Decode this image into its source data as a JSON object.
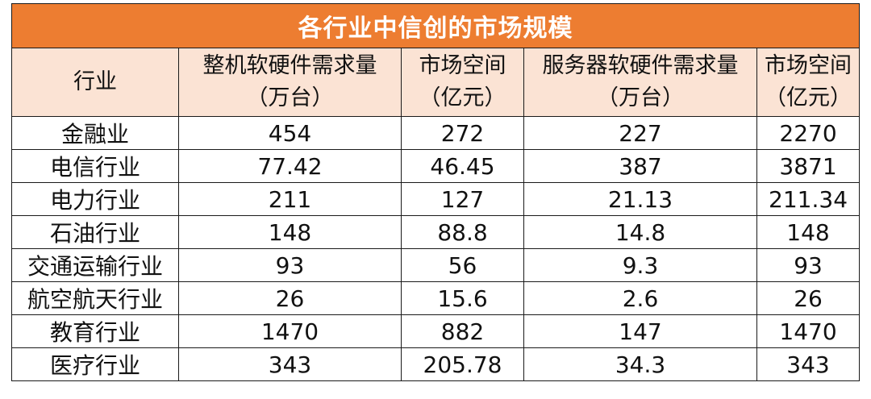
{
  "title": "各行业中信创的市场规模",
  "headers": {
    "industry": "行业",
    "pc_demand": {
      "line1": "整机软硬件需求量",
      "line2": "（万台）"
    },
    "pc_market": {
      "line1": "市场空间",
      "line2": "（亿元）"
    },
    "server_demand": {
      "line1": "服务器软硬件需求量",
      "line2": "（万台）"
    },
    "server_market": {
      "line1": "市场空间",
      "line2": "（亿元）"
    }
  },
  "rows": [
    {
      "industry": "金融业",
      "pc_demand": "454",
      "pc_market": "272",
      "server_demand": "227",
      "server_market": "2270"
    },
    {
      "industry": "电信行业",
      "pc_demand": "77.42",
      "pc_market": "46.45",
      "server_demand": "387",
      "server_market": "3871"
    },
    {
      "industry": "电力行业",
      "pc_demand": "211",
      "pc_market": "127",
      "server_demand": "21.13",
      "server_market": "211.34"
    },
    {
      "industry": "石油行业",
      "pc_demand": "148",
      "pc_market": "88.8",
      "server_demand": "14.8",
      "server_market": "148"
    },
    {
      "industry": "交通运输行业",
      "pc_demand": "93",
      "pc_market": "56",
      "server_demand": "9.3",
      "server_market": "93"
    },
    {
      "industry": "航空航天行业",
      "pc_demand": "26",
      "pc_market": "15.6",
      "server_demand": "2.6",
      "server_market": "26"
    },
    {
      "industry": "教育行业",
      "pc_demand": "1470",
      "pc_market": "882",
      "server_demand": "147",
      "server_market": "1470"
    },
    {
      "industry": "医疗行业",
      "pc_demand": "343",
      "pc_market": "205.78",
      "server_demand": "34.3",
      "server_market": "343"
    }
  ],
  "colors": {
    "title_bg": "#ED7D31",
    "header_bg": "#FBE3D4",
    "title_text": "#FFFFFF"
  }
}
